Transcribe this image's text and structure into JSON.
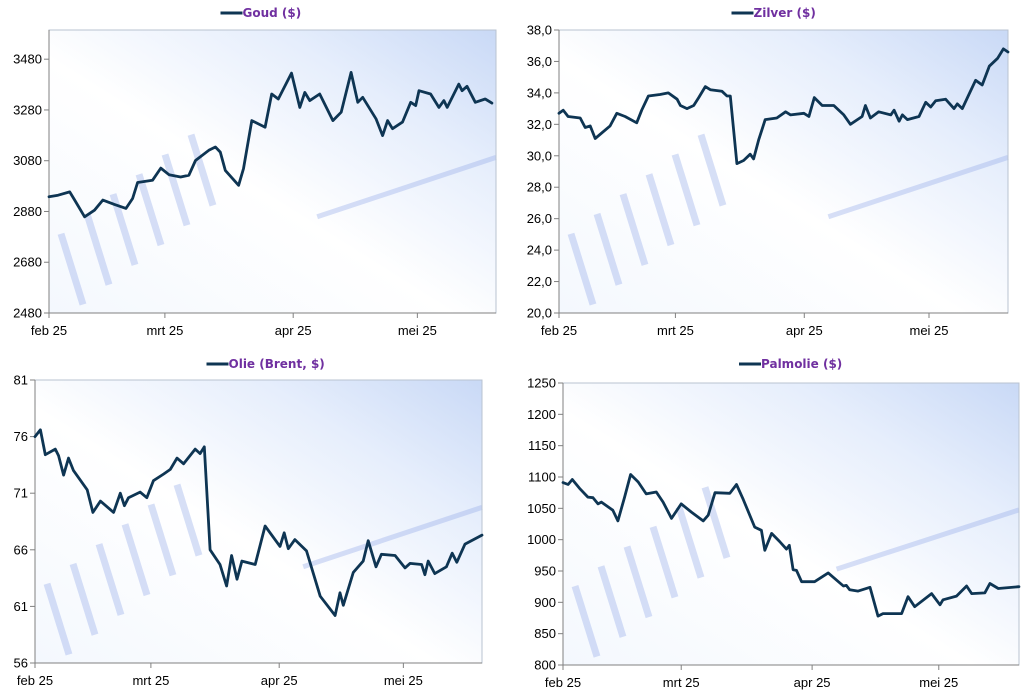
{
  "chart_data": [
    {
      "type": "line",
      "title": "Goud ($)",
      "x_unit": "days since 1 Feb 2025",
      "xlim": [
        0,
        108
      ],
      "x_ticks": [
        {
          "x": 0,
          "label": "feb 25"
        },
        {
          "x": 28,
          "label": "mrt 25"
        },
        {
          "x": 59,
          "label": "apr 25"
        },
        {
          "x": 89,
          "label": "mei 25"
        }
      ],
      "ylim": [
        2480,
        3595
      ],
      "y_ticks": [
        {
          "y": 2480,
          "label": "2480"
        },
        {
          "y": 2680,
          "label": "2680"
        },
        {
          "y": 2880,
          "label": "2880"
        },
        {
          "y": 3080,
          "label": "3080"
        },
        {
          "y": 3280,
          "label": "3280"
        },
        {
          "y": 3480,
          "label": "3480"
        }
      ],
      "series": [
        {
          "name": "Goud ($)",
          "color": "#0e3553",
          "x": [
            0,
            2.2,
            5,
            6.2,
            8.6,
            11,
            13,
            15.8,
            18.6,
            20.2,
            21.4,
            25,
            27,
            29,
            31.8,
            33.8,
            35.4,
            38.6,
            40.2,
            41.4,
            42.6,
            45.8,
            47,
            49,
            52.2,
            53.8,
            55.4,
            58.6,
            60.6,
            61.8,
            63,
            65.4,
            68.6,
            70.6,
            73,
            74.6,
            75.8,
            79,
            80.6,
            81.8,
            83,
            85.4,
            87.4,
            88.6,
            89.4,
            92.2,
            94.2,
            95.4,
            96.2,
            99,
            99.8,
            101,
            103,
            105.4,
            107
          ],
          "y": [
            2938,
            2944,
            2957,
            2925,
            2859,
            2885,
            2925,
            2908,
            2892,
            2931,
            2994,
            3003,
            3051,
            3025,
            3016,
            3023,
            3081,
            3121,
            3134,
            3114,
            3042,
            2983,
            3049,
            3238,
            3212,
            3343,
            3323,
            3425,
            3290,
            3349,
            3317,
            3343,
            3238,
            3271,
            3428,
            3310,
            3330,
            3245,
            3179,
            3238,
            3206,
            3232,
            3310,
            3297,
            3356,
            3343,
            3290,
            3317,
            3290,
            3382,
            3356,
            3373,
            3310,
            3323,
            3307
          ]
        }
      ]
    },
    {
      "type": "line",
      "title": "Zilver ($)",
      "x_unit": "days since 1 Feb 2025",
      "xlim": [
        0,
        108
      ],
      "x_ticks": [
        {
          "x": 0,
          "label": "feb 25"
        },
        {
          "x": 28,
          "label": "mrt 25"
        },
        {
          "x": 59,
          "label": "apr 25"
        },
        {
          "x": 89,
          "label": "mei 25"
        }
      ],
      "ylim": [
        20,
        38
      ],
      "y_ticks": [
        {
          "y": 20,
          "label": "20,0"
        },
        {
          "y": 22,
          "label": "22,0"
        },
        {
          "y": 24,
          "label": "24,0"
        },
        {
          "y": 26,
          "label": "26,0"
        },
        {
          "y": 28,
          "label": "28,0"
        },
        {
          "y": 30,
          "label": "30,0"
        },
        {
          "y": 32,
          "label": "32,0"
        },
        {
          "y": 34,
          "label": "34,0"
        },
        {
          "y": 36,
          "label": "36,0"
        },
        {
          "y": 38,
          "label": "38,0"
        }
      ],
      "series": [
        {
          "name": "Zilver ($)",
          "color": "#0e3553",
          "x": [
            0,
            1,
            2.2,
            5.1,
            6.3,
            7.5,
            8.7,
            12.3,
            13.9,
            15.9,
            18.7,
            19.9,
            21.5,
            24.3,
            26.3,
            28.4,
            29.2,
            30.8,
            32.4,
            33.6,
            35.2,
            36.4,
            39.2,
            40.4,
            41.2,
            42.8,
            44.4,
            46,
            46.8,
            48,
            49.6,
            52.4,
            54.5,
            55.7,
            58.9,
            60.1,
            61.4,
            63.3,
            66.1,
            68.5,
            70.1,
            72.9,
            73.7,
            74.9,
            76.9,
            79.8,
            80.6,
            81.8,
            82.6,
            83.8,
            86.6,
            88.2,
            89.4,
            90.6,
            93,
            95,
            95.8,
            97,
            98.6,
            100.2,
            101.8,
            103.5,
            105.5,
            106.9,
            108
          ],
          "y": [
            32.7,
            32.9,
            32.5,
            32.4,
            31.8,
            31.9,
            31.1,
            31.9,
            32.7,
            32.5,
            32.1,
            32.9,
            33.8,
            33.9,
            34.0,
            33.6,
            33.2,
            33.0,
            33.2,
            33.7,
            34.4,
            34.2,
            34.1,
            33.8,
            33.8,
            29.5,
            29.7,
            30.1,
            29.8,
            31.0,
            32.3,
            32.4,
            32.8,
            32.6,
            32.7,
            32.5,
            33.7,
            33.2,
            33.2,
            32.6,
            32.0,
            32.5,
            33.2,
            32.4,
            32.8,
            32.6,
            32.9,
            32.2,
            32.6,
            32.3,
            32.5,
            33.4,
            33.1,
            33.5,
            33.6,
            33.0,
            33.3,
            33.0,
            33.9,
            34.8,
            34.5,
            35.7,
            36.2,
            36.8,
            36.6
          ]
        }
      ]
    },
    {
      "type": "line",
      "title": "Olie (Brent, $)",
      "x_unit": "days since 1 Feb 2025",
      "xlim": [
        0,
        108
      ],
      "x_ticks": [
        {
          "x": 0,
          "label": "feb 25"
        },
        {
          "x": 28,
          "label": "mrt 25"
        },
        {
          "x": 59,
          "label": "apr 25"
        },
        {
          "x": 89,
          "label": "mei 25"
        }
      ],
      "ylim": [
        56,
        81
      ],
      "y_ticks": [
        {
          "y": 56,
          "label": "56"
        },
        {
          "y": 61,
          "label": "61"
        },
        {
          "y": 66,
          "label": "66"
        },
        {
          "y": 71,
          "label": "71"
        },
        {
          "y": 76,
          "label": "76"
        },
        {
          "y": 81,
          "label": "81"
        }
      ],
      "series": [
        {
          "name": "Olie (Brent, $)",
          "color": "#0e3553",
          "x": [
            0,
            1.3,
            2.5,
            4.9,
            5.7,
            6.9,
            8.1,
            9.3,
            12.6,
            14,
            15.8,
            19,
            20.6,
            21.6,
            22.6,
            25.4,
            27,
            28.6,
            31.1,
            32.7,
            34.3,
            35.9,
            38.7,
            39.9,
            40.9,
            42.3,
            44.7,
            46.3,
            47.5,
            48.8,
            50,
            53.2,
            55.6,
            59.2,
            60.2,
            61.2,
            62.8,
            65.6,
            68.9,
            72.5,
            73.7,
            74.5,
            76.9,
            79.3,
            80.5,
            82.4,
            83.7,
            87,
            89.4,
            90.6,
            93.4,
            94.2,
            95,
            96.6,
            99.4,
            100.8,
            101.9,
            103.9,
            108
          ],
          "y": [
            76.0,
            76.6,
            74.4,
            74.9,
            74.3,
            72.6,
            74.1,
            73.0,
            71.3,
            69.3,
            70.3,
            69.3,
            71.0,
            69.9,
            70.6,
            71.1,
            70.6,
            72.1,
            72.7,
            73.1,
            74.1,
            73.6,
            74.9,
            74.5,
            75.1,
            66.0,
            64.7,
            62.8,
            65.5,
            63.4,
            65.0,
            64.7,
            68.1,
            66.3,
            67.5,
            66.1,
            66.9,
            65.9,
            61.9,
            60.2,
            62.2,
            61.1,
            64.0,
            65.0,
            66.8,
            64.5,
            65.6,
            65.5,
            64.4,
            64.8,
            64.7,
            63.8,
            65.0,
            63.9,
            64.5,
            65.7,
            64.9,
            66.5,
            67.3
          ]
        }
      ]
    },
    {
      "type": "line",
      "title": "Palmolie ($)",
      "x_unit": "days since 1 Feb 2025",
      "xlim": [
        0,
        108
      ],
      "x_ticks": [
        {
          "x": 0,
          "label": "feb 25"
        },
        {
          "x": 28,
          "label": "mrt 25"
        },
        {
          "x": 59,
          "label": "apr 25"
        },
        {
          "x": 89,
          "label": "mei 25"
        }
      ],
      "ylim": [
        800,
        1250
      ],
      "y_ticks": [
        {
          "y": 800,
          "label": "800"
        },
        {
          "y": 850,
          "label": "850"
        },
        {
          "y": 900,
          "label": "900"
        },
        {
          "y": 950,
          "label": "950"
        },
        {
          "y": 1000,
          "label": "1000"
        },
        {
          "y": 1050,
          "label": "1050"
        },
        {
          "y": 1100,
          "label": "1100"
        },
        {
          "y": 1150,
          "label": "1150"
        },
        {
          "y": 1200,
          "label": "1200"
        },
        {
          "y": 1250,
          "label": "1250"
        }
      ],
      "series": [
        {
          "name": "Palmolie ($)",
          "color": "#0e3553",
          "x": [
            0,
            1.2,
            2.2,
            3.9,
            5.9,
            7.1,
            8.3,
            9.1,
            11.8,
            13,
            14.6,
            16,
            17.8,
            19.7,
            22.1,
            23.7,
            25.7,
            28,
            30.4,
            33.2,
            34.4,
            36,
            39.5,
            41.1,
            42.7,
            45.4,
            47,
            47.8,
            49.4,
            51.3,
            52.9,
            53.6,
            54.5,
            55.3,
            56.5,
            59.6,
            62.8,
            66.4,
            67.1,
            67.9,
            69.9,
            72.7,
            74.6,
            75.8,
            80.2,
            81.7,
            83.3,
            87.3,
            89.3,
            90,
            93.2,
            95.6,
            96.8,
            99.9,
            101.1,
            103.1,
            108
          ],
          "y": [
            1091,
            1088,
            1096,
            1082,
            1068,
            1067,
            1057,
            1060,
            1047,
            1030,
            1068,
            1104,
            1092,
            1073,
            1076,
            1060,
            1034,
            1057,
            1044,
            1030,
            1039,
            1075,
            1074,
            1088,
            1064,
            1020,
            1015,
            983,
            1010,
            997,
            985,
            991,
            952,
            951,
            933,
            933,
            947,
            926,
            927,
            920,
            918,
            924,
            878,
            882,
            882,
            909,
            893,
            914,
            896,
            904,
            910,
            926,
            914,
            915,
            930,
            922,
            925
          ]
        }
      ]
    }
  ]
}
